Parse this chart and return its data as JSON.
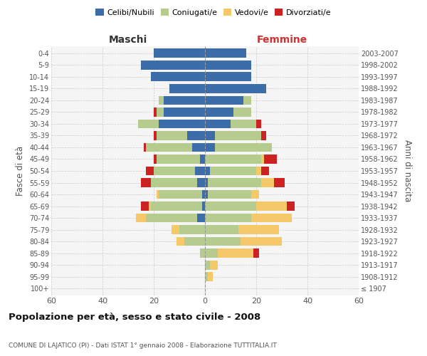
{
  "age_groups": [
    "100+",
    "95-99",
    "90-94",
    "85-89",
    "80-84",
    "75-79",
    "70-74",
    "65-69",
    "60-64",
    "55-59",
    "50-54",
    "45-49",
    "40-44",
    "35-39",
    "30-34",
    "25-29",
    "20-24",
    "15-19",
    "10-14",
    "5-9",
    "0-4"
  ],
  "birth_years": [
    "≤ 1907",
    "1908-1912",
    "1913-1917",
    "1918-1922",
    "1923-1927",
    "1928-1932",
    "1933-1937",
    "1938-1942",
    "1943-1947",
    "1948-1952",
    "1953-1957",
    "1958-1962",
    "1963-1967",
    "1968-1972",
    "1973-1977",
    "1978-1982",
    "1983-1987",
    "1988-1992",
    "1993-1997",
    "1998-2002",
    "2003-2007"
  ],
  "male": {
    "celibi": [
      0,
      0,
      0,
      0,
      0,
      0,
      3,
      1,
      1,
      3,
      4,
      2,
      5,
      7,
      18,
      16,
      16,
      14,
      21,
      25,
      20
    ],
    "coniugati": [
      0,
      0,
      0,
      2,
      8,
      10,
      20,
      20,
      17,
      18,
      16,
      17,
      18,
      12,
      8,
      3,
      2,
      0,
      0,
      0,
      0
    ],
    "vedovi": [
      0,
      0,
      0,
      0,
      3,
      3,
      4,
      1,
      1,
      0,
      0,
      0,
      0,
      0,
      0,
      0,
      0,
      0,
      0,
      0,
      0
    ],
    "divorziati": [
      0,
      0,
      0,
      0,
      0,
      0,
      0,
      3,
      0,
      4,
      3,
      1,
      1,
      1,
      0,
      1,
      0,
      0,
      0,
      0,
      0
    ]
  },
  "female": {
    "nubili": [
      0,
      0,
      0,
      0,
      0,
      0,
      0,
      0,
      1,
      1,
      2,
      0,
      4,
      4,
      10,
      11,
      15,
      24,
      18,
      18,
      16
    ],
    "coniugate": [
      0,
      1,
      2,
      5,
      14,
      13,
      18,
      20,
      17,
      21,
      18,
      22,
      22,
      18,
      10,
      7,
      3,
      0,
      0,
      0,
      0
    ],
    "vedove": [
      0,
      2,
      3,
      14,
      16,
      16,
      16,
      12,
      3,
      5,
      2,
      1,
      0,
      0,
      0,
      0,
      0,
      0,
      0,
      0,
      0
    ],
    "divorziate": [
      0,
      0,
      0,
      2,
      0,
      0,
      0,
      3,
      0,
      4,
      3,
      5,
      0,
      2,
      2,
      0,
      0,
      0,
      0,
      0,
      0
    ]
  },
  "colors": {
    "celibi": "#3d6da8",
    "coniugati": "#b5cc8e",
    "vedovi": "#f5c96a",
    "divorziati": "#cc2222"
  },
  "xlim": 60,
  "title": "Popolazione per età, sesso e stato civile - 2008",
  "subtitle": "COMUNE DI LAJATICO (PI) - Dati ISTAT 1° gennaio 2008 - Elaborazione TUTTITALIA.IT",
  "ylabel_left": "Fasce di età",
  "ylabel_right": "Anni di nascita",
  "xlabel_left": "Maschi",
  "xlabel_right": "Femmine",
  "bg_color": "#f5f5f5",
  "grid_color": "#cccccc"
}
